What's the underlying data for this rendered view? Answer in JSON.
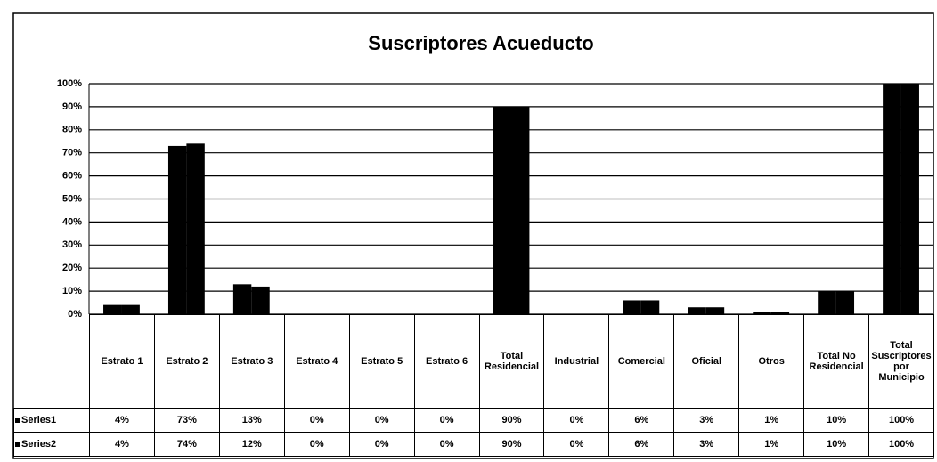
{
  "chart_data": {
    "type": "bar",
    "title": "Suscriptores Acueducto",
    "categories": [
      "Estrato 1",
      "Estrato 2",
      "Estrato 3",
      "Estrato 4",
      "Estrato 5",
      "Estrato 6",
      "Total Residencial",
      "Industrial",
      "Comercial",
      "Oficial",
      "Otros",
      "Total No Residencial",
      "Total Suscriptores por Municipio"
    ],
    "series": [
      {
        "name": "Series1",
        "color": "#000000",
        "values": [
          4,
          73,
          13,
          0,
          0,
          0,
          90,
          0,
          6,
          3,
          1,
          10,
          100
        ],
        "value_labels": [
          "4%",
          "73%",
          "13%",
          "0%",
          "0%",
          "0%",
          "90%",
          "0%",
          "6%",
          "3%",
          "1%",
          "10%",
          "100%"
        ]
      },
      {
        "name": "Series2",
        "color": "#000000",
        "values": [
          4,
          74,
          12,
          0,
          0,
          0,
          90,
          0,
          6,
          3,
          1,
          10,
          100
        ],
        "value_labels": [
          "4%",
          "74%",
          "12%",
          "0%",
          "0%",
          "0%",
          "90%",
          "0%",
          "6%",
          "3%",
          "1%",
          "10%",
          "100%"
        ]
      }
    ],
    "ylim": [
      0,
      100
    ],
    "yticks": [
      {
        "value": 0,
        "label": "0%"
      },
      {
        "value": 10,
        "label": "10%"
      },
      {
        "value": 20,
        "label": "20%"
      },
      {
        "value": 30,
        "label": "30%"
      },
      {
        "value": 40,
        "label": "40%"
      },
      {
        "value": 50,
        "label": "50%"
      },
      {
        "value": 60,
        "label": "60%"
      },
      {
        "value": 70,
        "label": "70%"
      },
      {
        "value": 80,
        "label": "80%"
      },
      {
        "value": 90,
        "label": "90%"
      },
      {
        "value": 100,
        "label": "100%"
      }
    ],
    "grid": true
  }
}
